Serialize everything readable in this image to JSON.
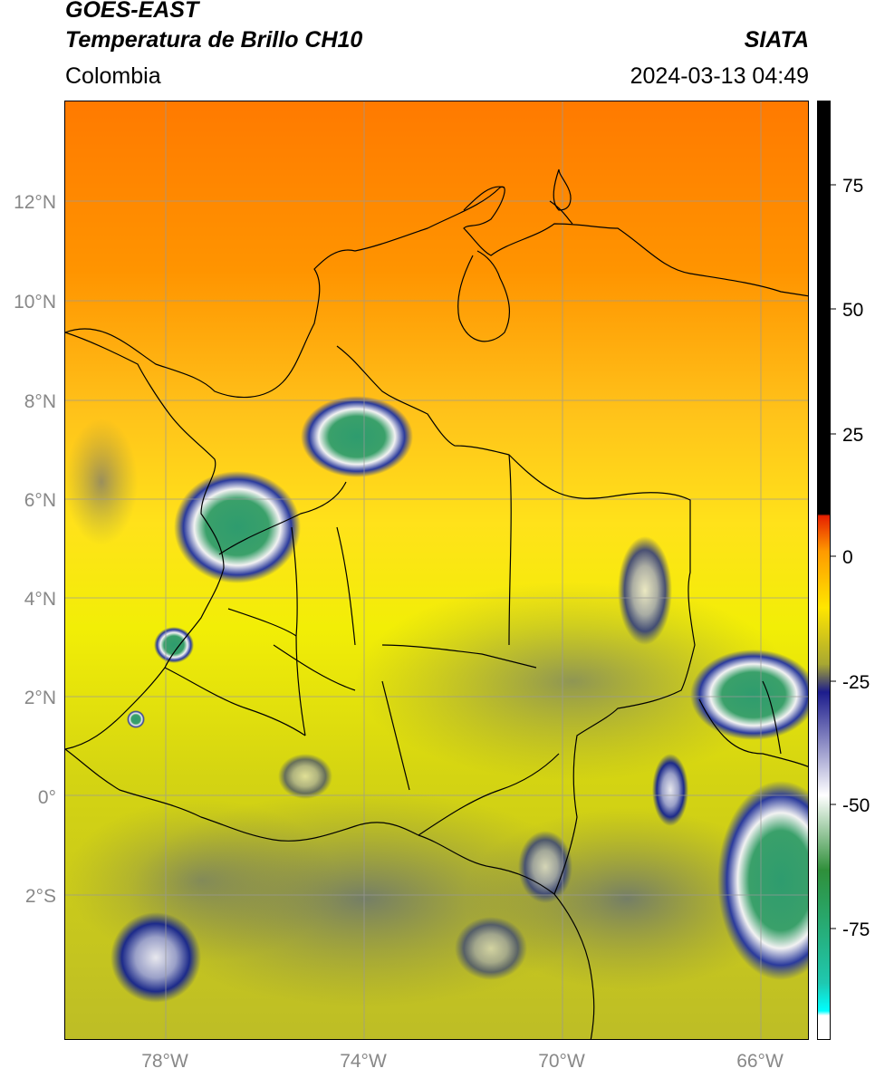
{
  "header": {
    "title_line1": "GOES-EAST",
    "title_line2": "Temperatura de Brillo CH10",
    "brand": "SIATA",
    "region": "Colombia",
    "datetime": "2024-03-13 04:49"
  },
  "map": {
    "lat_ticks": [
      "12°N",
      "10°N",
      "8°N",
      "6°N",
      "4°N",
      "2°N",
      "0°",
      "2°S"
    ],
    "lon_ticks": [
      "78°W",
      "74°W",
      "70°W",
      "66°W"
    ],
    "colors": {
      "warm_top": "#ff8000",
      "mid": "#ffd21e",
      "yellow": "#f5f000",
      "olive": "#b8b828",
      "cloud_blue": "#1c2a8a",
      "cloud_white": "#f2f2f2",
      "cloud_green": "#2e9c6e"
    }
  },
  "colorbar": {
    "labels": [
      "75",
      "50",
      "25",
      "0",
      "-25",
      "-50",
      "-75"
    ],
    "colors": [
      "#000000",
      "#e62000",
      "#ff9a00",
      "#ffe600",
      "#a8a832",
      "#1c1c8c",
      "#ffffff",
      "#2f8f3a",
      "#1fc8b0",
      "#00ffff"
    ]
  }
}
